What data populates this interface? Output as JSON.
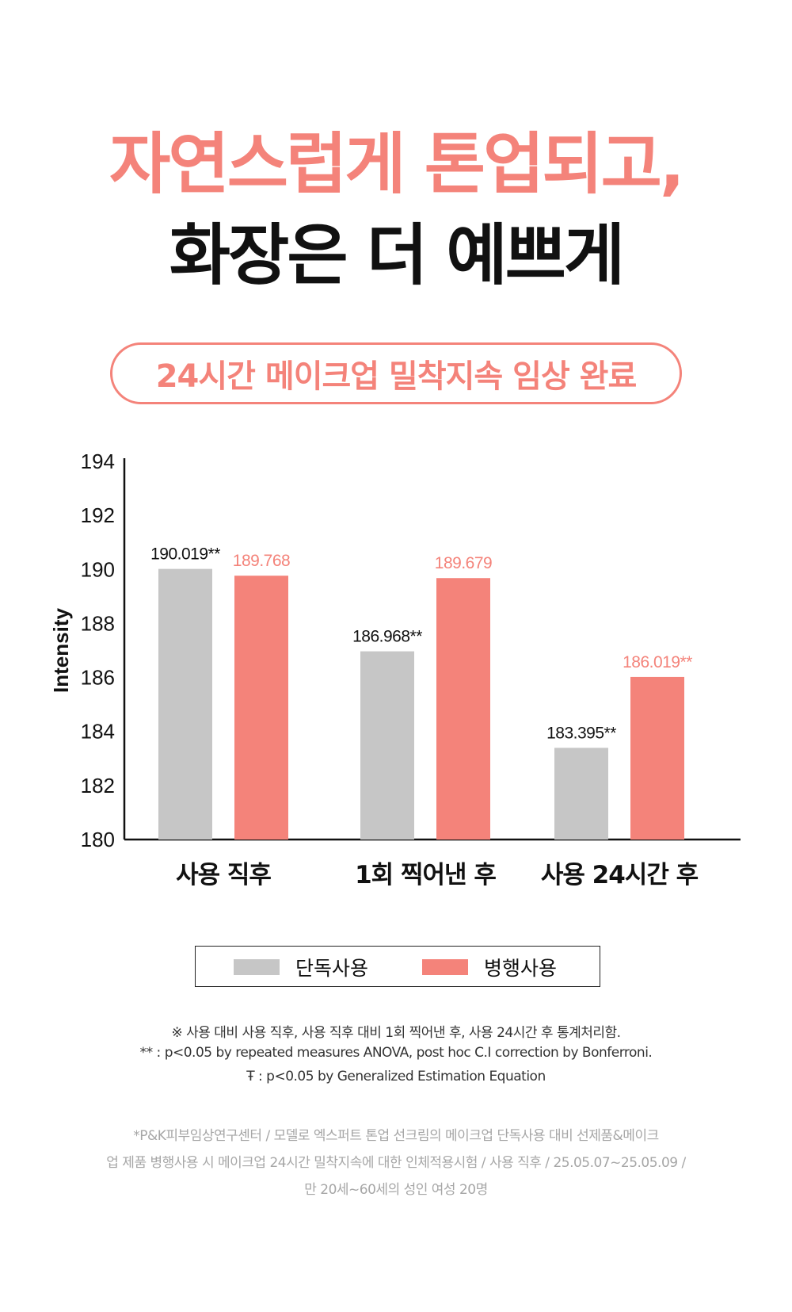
{
  "colors": {
    "accent": "#f4837a",
    "gray": "#c6c6c6",
    "dark": "#111111"
  },
  "headline": {
    "line1": "자연스럽게 톤업되고,",
    "line2": "화장은 더 예쁘게"
  },
  "badge": "24시간 메이크업 밀착지속 임상 완료",
  "chart_data": {
    "type": "bar",
    "ylabel": "Intensity",
    "ylim": [
      180,
      194
    ],
    "yticks": [
      180,
      182,
      184,
      186,
      188,
      190,
      192,
      194
    ],
    "categories": [
      "사용 직후",
      "1회 찍어낸 후",
      "사용 24시간 후"
    ],
    "series": [
      {
        "name": "단독사용",
        "color": "#c6c6c6",
        "values": [
          190.019,
          186.968,
          183.395
        ],
        "labels": [
          "190.019**",
          "186.968**",
          "183.395**"
        ]
      },
      {
        "name": "병행사용",
        "color": "#f4837a",
        "values": [
          189.768,
          189.679,
          186.019
        ],
        "labels": [
          "189.768",
          "189.679",
          "186.019**"
        ]
      }
    ],
    "grid": false,
    "legend": "bottom"
  },
  "legend": {
    "item1": "단독사용",
    "item2": "병행사용"
  },
  "notes": {
    "line1": "※ 사용  대비 사용 직후, 사용 직후 대비 1회 찍어낸 후, 사용 24시간 후 통계처리함.",
    "line2": "** : p<0.05 by repeated measures ANOVA, post hoc C.I correction by Bonferroni.",
    "line3": "Ŧ : p<0.05 by Generalized Estimation Equation"
  },
  "source": {
    "line1": "*P&K피부임상연구센터 / 모델로 엑스퍼트 톤업 선크림의 메이크업 단독사용 대비 선제품&메이크",
    "line2": "업 제품 병행사용 시 메이크업 24시간 밀착지속에 대한 인체적용시험 / 사용 직후 / 25.05.07~25.05.09 /",
    "line3": "만 20세~60세의 성인 여성 20명"
  }
}
